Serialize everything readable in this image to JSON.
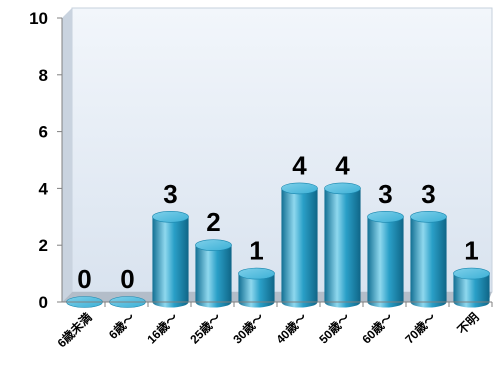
{
  "chart_data": {
    "type": "bar",
    "title": "",
    "xlabel": "",
    "ylabel": "",
    "ylim": [
      0,
      10
    ],
    "yticks": [
      0,
      2,
      4,
      6,
      8,
      10
    ],
    "grid": false,
    "legend": "none",
    "style": "3d-cylinder",
    "categories": [
      "6歳未満",
      "6歳～",
      "16歳～",
      "25歳～",
      "30歳～",
      "40歳～",
      "50歳～",
      "60歳～",
      "70歳～",
      "不明"
    ],
    "series": [
      {
        "values": [
          0,
          0,
          3,
          2,
          1,
          4,
          4,
          3,
          3,
          1
        ]
      }
    ],
    "data_labels": [
      "0",
      "0",
      "3",
      "2",
      "1",
      "4",
      "4",
      "3",
      "3",
      "1"
    ],
    "colors": {
      "bar_main": "#2aa0c8",
      "bar_dark": "#126f93",
      "bar_light": "#8fd8ee",
      "bar_top": "#5fc3e2",
      "plot_back": "#e4ecf6",
      "plot_wall": "#c9d3df",
      "plot_floor": "#b3bdc9"
    }
  }
}
